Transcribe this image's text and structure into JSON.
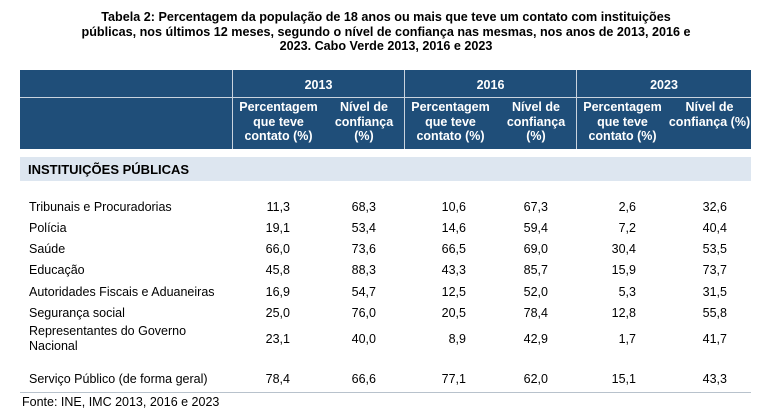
{
  "title": "Tabela 2: Percentagem da população de 18 anos ou mais que teve um contato com instituições públicas, nos últimos 12 meses, segundo o nível de confiança nas mesmas, nos anos de 2013, 2016 e 2023. Cabo Verde 2013, 2016 e 2023",
  "header": {
    "years": [
      "2013",
      "2016",
      "2023"
    ],
    "sub_pct": "Percentagem que teve contato (%)",
    "sub_conf": "Nível de confiança (%)"
  },
  "section_label": "INSTITUIÇÕES PÚBLICAS",
  "rows": [
    {
      "label": "Tribunais e Procuradorias",
      "values": [
        "11,3",
        "68,3",
        "10,6",
        "67,3",
        "2,6",
        "32,6"
      ]
    },
    {
      "label": "Polícia",
      "values": [
        "19,1",
        "53,4",
        "14,6",
        "59,4",
        "7,2",
        "40,4"
      ]
    },
    {
      "label": "Saúde",
      "values": [
        "66,0",
        "73,6",
        "66,5",
        "69,0",
        "30,4",
        "53,5"
      ]
    },
    {
      "label": "Educação",
      "values": [
        "45,8",
        "88,3",
        "43,3",
        "85,7",
        "15,9",
        "73,7"
      ]
    },
    {
      "label": "Autoridades Fiscais e Aduaneiras",
      "values": [
        "16,9",
        "54,7",
        "12,5",
        "52,0",
        "5,3",
        "31,5"
      ]
    },
    {
      "label": "Segurança social",
      "values": [
        "25,0",
        "76,0",
        "20,5",
        "78,4",
        "12,8",
        "55,8"
      ]
    },
    {
      "label": "Representantes do Governo Nacional",
      "values": [
        "23,1",
        "40,0",
        "8,9",
        "42,9",
        "1,7",
        "41,7"
      ]
    },
    {
      "label": "Serviço Público (de forma geral)",
      "values": [
        "78,4",
        "66,6",
        "77,1",
        "62,0",
        "15,1",
        "43,3"
      ]
    }
  ],
  "source": "Fonte: INE, IMC 2013, 2016 e 2023"
}
